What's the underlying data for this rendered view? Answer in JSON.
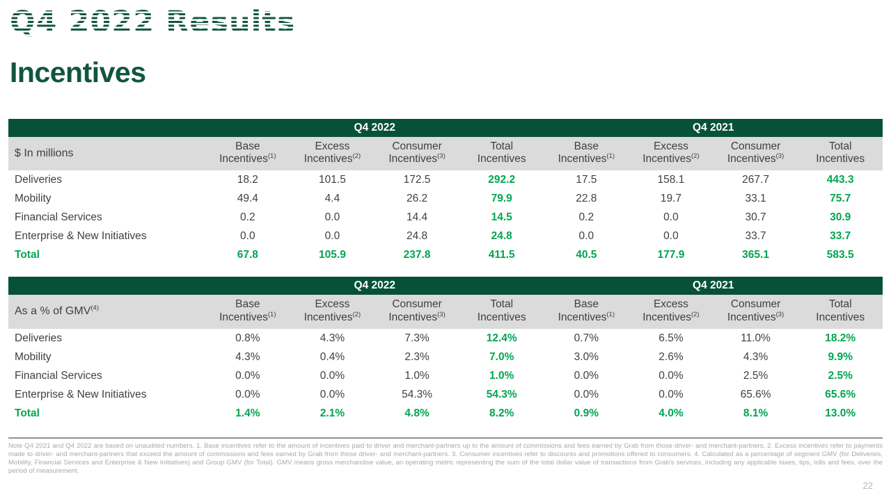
{
  "slide": {
    "title": "Q4 2022 Results",
    "subtitle": "Incentives",
    "page_number": "22",
    "footnote": "Note Q4 2021 and Q4 2022 are based on unaudited numbers. 1. Base incentives refer to the amount of incentives paid to driver and merchant-partners up to the amount of commissions and fees earned by Grab from those driver- and merchant-partners. 2. Excess incentives refer to payments made to driver- and merchant-partners that exceed the amount of commissions and fees earned by Grab from those driver- and merchant-partners. 3. Consumer incentives refer to discounts and promotions offered to consumers. 4. Calculated as a percentage of segment GMV (for Deliveries, Mobility, Financial Services and Enterprise & New Initiatives) and Group GMV (for Total). GMV means gross merchandise value, an operating metric representing the sum of the total dollar value of transactions from Grab's services, including any applicable taxes, tips, tolls and fees, over the period of measurement."
  },
  "colors": {
    "dark_green_header": "#075138",
    "heading_green": "#10563E",
    "bright_green": "#00A651",
    "band_gray": "#DBDBDB",
    "text_dark": "#3F3F3F",
    "footnote_gray": "#A9A9A9"
  },
  "chart_data": [
    {
      "type": "table",
      "title": "Incentives in $ millions",
      "unit_label": "$ In millions",
      "unit_label_sup": "",
      "period_headers": [
        "Q4 2022",
        "Q4 2021"
      ],
      "columns": [
        {
          "top": "Base",
          "bottom": "Incentives",
          "sup": "(1)"
        },
        {
          "top": "Excess",
          "bottom": "Incentives",
          "sup": "(2)"
        },
        {
          "top": "Consumer",
          "bottom": "Incentives",
          "sup": "(3)"
        },
        {
          "top": "Total",
          "bottom": "Incentives",
          "sup": ""
        }
      ],
      "highlight_col_indices": [
        3,
        7
      ],
      "rows": [
        {
          "label": "Deliveries",
          "values": [
            "18.2",
            "101.5",
            "172.5",
            "292.2",
            "17.5",
            "158.1",
            "267.7",
            "443.3"
          ],
          "is_total": false
        },
        {
          "label": "Mobility",
          "values": [
            "49.4",
            "4.4",
            "26.2",
            "79.9",
            "22.8",
            "19.7",
            "33.1",
            "75.7"
          ],
          "is_total": false
        },
        {
          "label": "Financial Services",
          "values": [
            "0.2",
            "0.0",
            "14.4",
            "14.5",
            "0.2",
            "0.0",
            "30.7",
            "30.9"
          ],
          "is_total": false
        },
        {
          "label": "Enterprise & New Initiatives",
          "values": [
            "0.0",
            "0.0",
            "24.8",
            "24.8",
            "0.0",
            "0.0",
            "33.7",
            "33.7"
          ],
          "is_total": false
        },
        {
          "label": "Total",
          "values": [
            "67.8",
            "105.9",
            "237.8",
            "411.5",
            "40.5",
            "177.9",
            "365.1",
            "583.5"
          ],
          "is_total": true
        }
      ]
    },
    {
      "type": "table",
      "title": "Incentives as a % of GMV",
      "unit_label": "As a % of GMV",
      "unit_label_sup": "(4)",
      "period_headers": [
        "Q4 2022",
        "Q4 2021"
      ],
      "columns": [
        {
          "top": "Base",
          "bottom": "Incentives",
          "sup": "(1)"
        },
        {
          "top": "Excess",
          "bottom": "Incentives",
          "sup": "(2)"
        },
        {
          "top": "Consumer",
          "bottom": "Incentives",
          "sup": "(3)"
        },
        {
          "top": "Total",
          "bottom": "Incentives",
          "sup": ""
        }
      ],
      "highlight_col_indices": [
        3,
        7
      ],
      "rows": [
        {
          "label": "Deliveries",
          "values": [
            "0.8%",
            "4.3%",
            "7.3%",
            "12.4%",
            "0.7%",
            "6.5%",
            "11.0%",
            "18.2%"
          ],
          "is_total": false
        },
        {
          "label": "Mobility",
          "values": [
            "4.3%",
            "0.4%",
            "2.3%",
            "7.0%",
            "3.0%",
            "2.6%",
            "4.3%",
            "9.9%"
          ],
          "is_total": false
        },
        {
          "label": "Financial Services",
          "values": [
            "0.0%",
            "0.0%",
            "1.0%",
            "1.0%",
            "0.0%",
            "0.0%",
            "2.5%",
            "2.5%"
          ],
          "is_total": false
        },
        {
          "label": "Enterprise & New Initiatives",
          "values": [
            "0.0%",
            "0.0%",
            "54.3%",
            "54.3%",
            "0.0%",
            "0.0%",
            "65.6%",
            "65.6%"
          ],
          "is_total": false
        },
        {
          "label": "Total",
          "values": [
            "1.4%",
            "2.1%",
            "4.8%",
            "8.2%",
            "0.9%",
            "4.0%",
            "8.1%",
            "13.0%"
          ],
          "is_total": true
        }
      ]
    }
  ]
}
